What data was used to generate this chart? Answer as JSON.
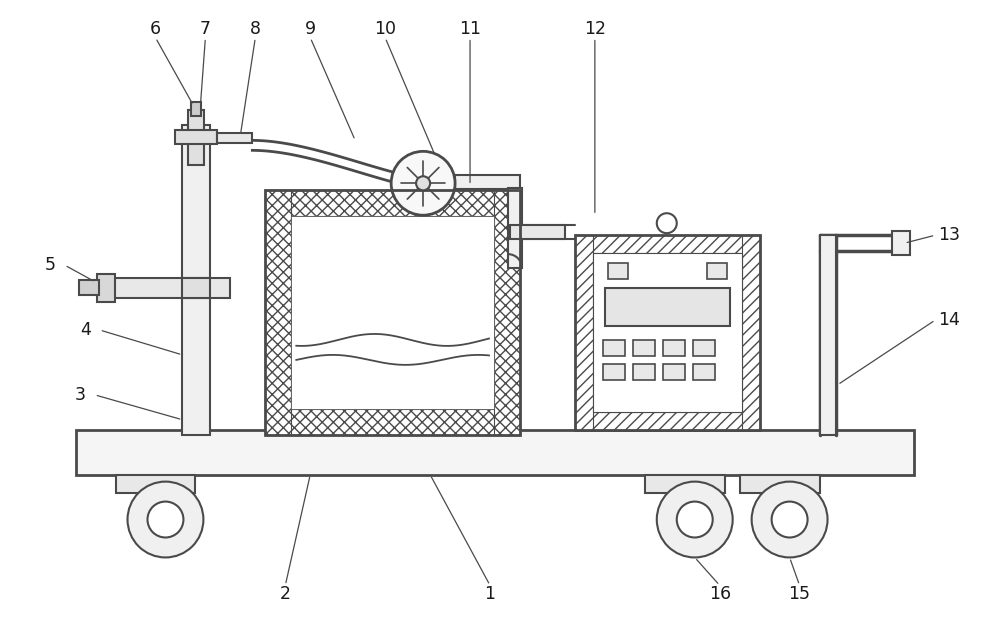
{
  "bg_color": "#ffffff",
  "line_color": "#4a4a4a",
  "label_color": "#1a1a1a",
  "fig_width": 10.0,
  "fig_height": 6.2,
  "dpi": 100
}
